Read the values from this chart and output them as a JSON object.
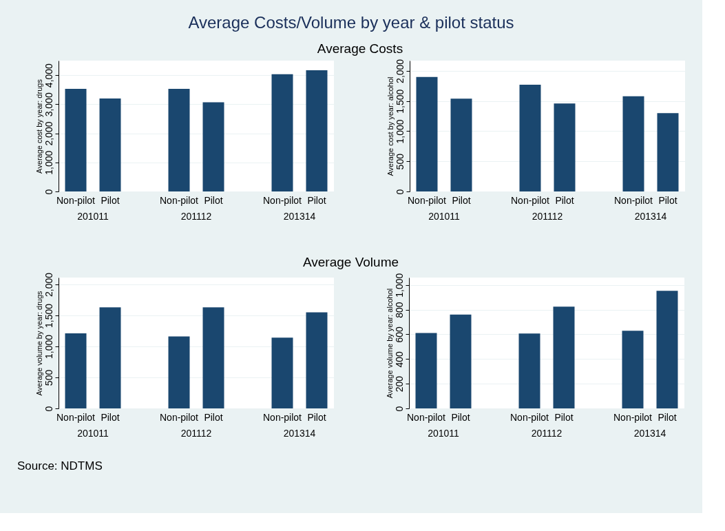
{
  "chart_data": [
    {
      "type": "bar",
      "title": "Average Costs/Volume by year & pilot status",
      "subtitle": "Average Costs",
      "ylabel": "Average cost by year: drugs",
      "categories": [
        "Non-pilot",
        "Pilot",
        "Non-pilot",
        "Pilot",
        "Non-pilot",
        "Pilot"
      ],
      "values": [
        3530,
        3200,
        3530,
        3070,
        4030,
        4170
      ],
      "color": "#1a476f",
      "ylim": [
        0,
        4500
      ],
      "yticks": [
        {
          "value": 0,
          "label": "0"
        },
        {
          "value": 1000,
          "label": "1,000"
        },
        {
          "value": 2000,
          "label": "2,000"
        },
        {
          "value": 3000,
          "label": "3,000"
        },
        {
          "value": 4000,
          "label": "4,000"
        }
      ],
      "grid": "y",
      "annotations": [
        "201011",
        "201112",
        "201314"
      ]
    },
    {
      "type": "bar",
      "ylabel": "Average cost by year: alcohol",
      "categories": [
        "Non-pilot",
        "Pilot",
        "Non-pilot",
        "Pilot",
        "Non-pilot",
        "Pilot"
      ],
      "values": [
        1900,
        1540,
        1770,
        1460,
        1580,
        1300
      ],
      "color": "#1a476f",
      "ylim": [
        0,
        2170
      ],
      "yticks": [
        {
          "value": 0,
          "label": "0"
        },
        {
          "value": 500,
          "label": "500"
        },
        {
          "value": 1000,
          "label": "1,000"
        },
        {
          "value": 1500,
          "label": "1,500"
        },
        {
          "value": 2000,
          "label": "2,000"
        }
      ],
      "grid": "y",
      "annotations": [
        "201011",
        "201112",
        "201314"
      ]
    },
    {
      "type": "bar",
      "subtitle": "Average Volume",
      "ylabel": "Average volume by year: drugs",
      "categories": [
        "Non-pilot",
        "Pilot",
        "Non-pilot",
        "Pilot",
        "Non-pilot",
        "Pilot"
      ],
      "values": [
        1210,
        1630,
        1160,
        1630,
        1140,
        1550
      ],
      "color": "#1a476f",
      "ylim": [
        0,
        2110
      ],
      "yticks": [
        {
          "value": 0,
          "label": "0"
        },
        {
          "value": 500,
          "label": "500"
        },
        {
          "value": 1000,
          "label": "1,000"
        },
        {
          "value": 1500,
          "label": "1,500"
        },
        {
          "value": 2000,
          "label": "2,000"
        }
      ],
      "grid": "y",
      "annotations": [
        "201011",
        "201112",
        "201314",
        "Source:  NDTMS"
      ]
    },
    {
      "type": "bar",
      "ylabel": "Average volume by year: alcohol",
      "categories": [
        "Non-pilot",
        "Pilot",
        "Non-pilot",
        "Pilot",
        "Non-pilot",
        "Pilot"
      ],
      "values": [
        611,
        760,
        607,
        824,
        629,
        953
      ],
      "color": "#1a476f",
      "ylim": [
        0,
        1060
      ],
      "yticks": [
        {
          "value": 0,
          "label": "0"
        },
        {
          "value": 200,
          "label": "200"
        },
        {
          "value": 400,
          "label": "400"
        },
        {
          "value": 600,
          "label": "600"
        },
        {
          "value": 800,
          "label": "800"
        },
        {
          "value": 1000,
          "label": "1,000"
        }
      ],
      "grid": "y",
      "annotations": [
        "201011",
        "201112",
        "201314"
      ]
    }
  ]
}
